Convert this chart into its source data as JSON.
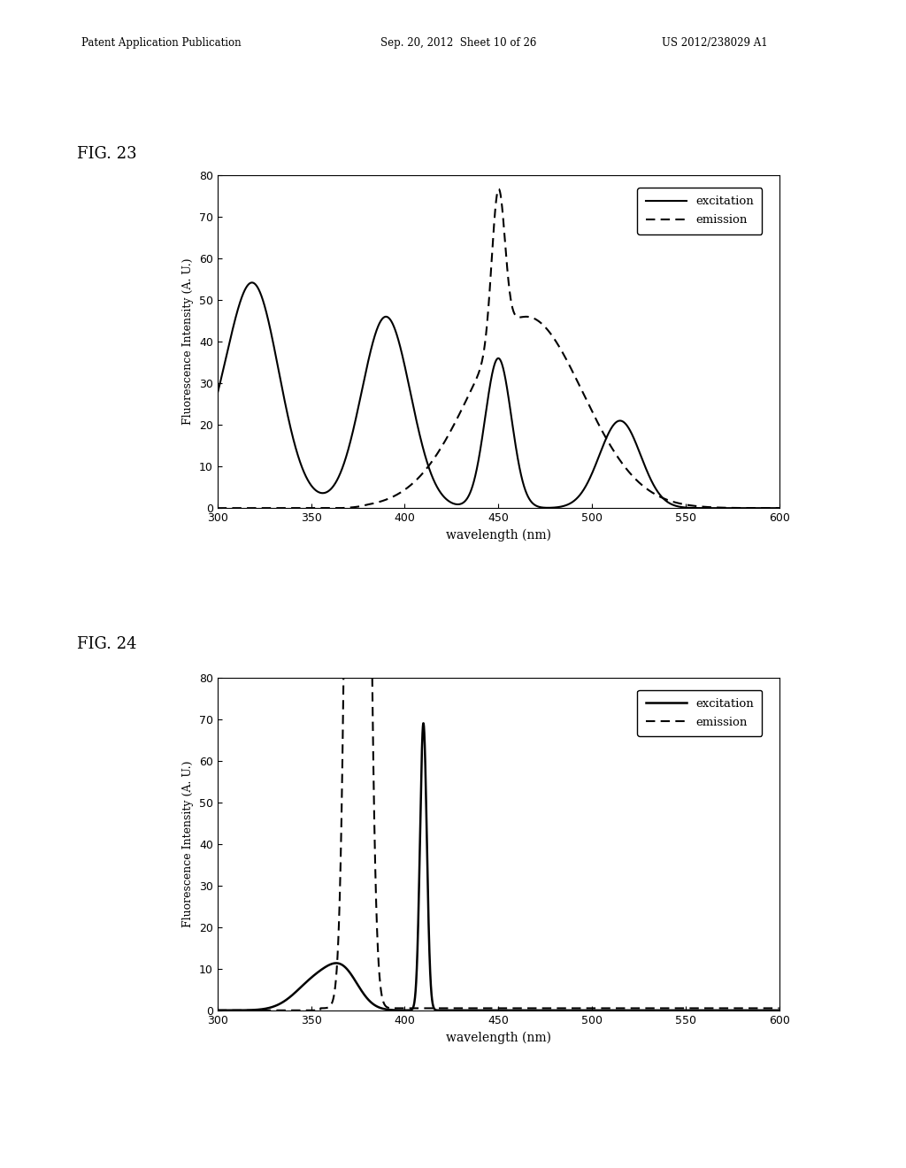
{
  "fig23_label": "FIG. 23",
  "fig24_label": "FIG. 24",
  "xlim": [
    300,
    600
  ],
  "ylim": [
    0,
    80
  ],
  "xlabel": "wavelength (nm)",
  "ylabel": "Fluorescence Intensity (A. U.)",
  "xticks": [
    300,
    350,
    400,
    450,
    500,
    550,
    600
  ],
  "yticks": [
    0,
    10,
    20,
    30,
    40,
    50,
    60,
    70,
    80
  ],
  "legend_excitation": "excitation",
  "legend_emission": "emission",
  "header_left": "Patent Application Publication",
  "header_mid": "Sep. 20, 2012  Sheet 10 of 26",
  "header_right": "US 2012/238029 A1",
  "bg_color": "#ffffff",
  "line_color": "#000000"
}
